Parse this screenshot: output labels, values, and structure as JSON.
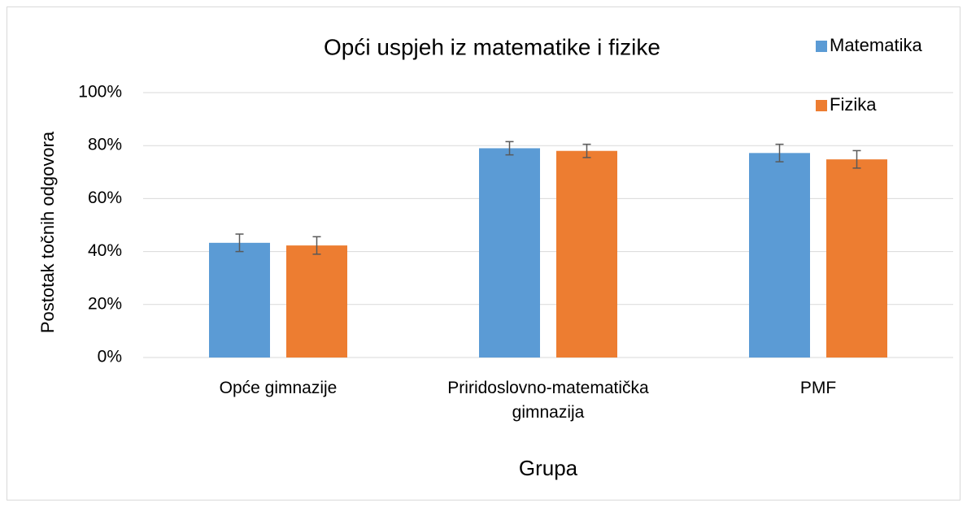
{
  "chart_data": {
    "type": "bar",
    "title": "Opći uspjeh iz matematike i fizike",
    "x_label": "Grupa",
    "y_label": "Postotak točnih odgovora",
    "categories": [
      "Opće gimnazije",
      "Priridoslovno-matematička gimnazija",
      "PMF"
    ],
    "series": [
      {
        "name": "Matematika",
        "color": "#5b9bd5",
        "values": [
          43.3,
          79,
          77.2
        ],
        "errors": [
          3.3,
          2.5,
          3.3
        ]
      },
      {
        "name": "Fizika",
        "color": "#ed7d31",
        "values": [
          42.3,
          78,
          74.8
        ],
        "errors": [
          3.3,
          2.5,
          3.3
        ]
      }
    ],
    "ylim": [
      0,
      100
    ],
    "yticks": [
      {
        "value": 0,
        "label": "0%"
      },
      {
        "value": 20,
        "label": "20%"
      },
      {
        "value": 40,
        "label": "40%"
      },
      {
        "value": 60,
        "label": "60%"
      },
      {
        "value": 80,
        "label": "80%"
      },
      {
        "value": 100,
        "label": "100%"
      }
    ],
    "grid": true,
    "legend": "top-right"
  }
}
